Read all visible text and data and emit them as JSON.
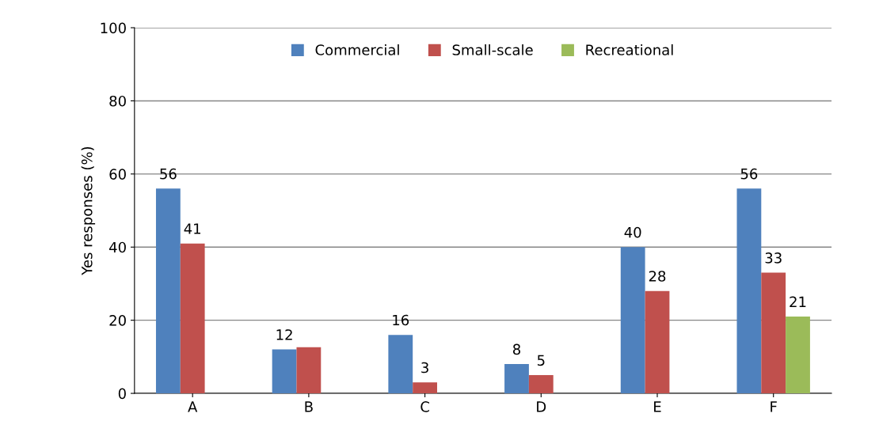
{
  "chart_data": {
    "type": "bar",
    "ylabel": "Yes responses (%)",
    "categories": [
      "A",
      "B",
      "C",
      "D",
      "E",
      "F"
    ],
    "series": [
      {
        "name": "Commercial",
        "color": "#4f81bd",
        "values": [
          56,
          12,
          16,
          8,
          40,
          56
        ],
        "value_labels": [
          "56",
          "12",
          "16",
          "8",
          "40",
          "56"
        ]
      },
      {
        "name": "Small-scale",
        "color": "#c0504d",
        "values": [
          41,
          12.6,
          3,
          5,
          28,
          33
        ],
        "value_labels": [
          "41",
          null,
          "3",
          "5",
          "28",
          "33"
        ]
      },
      {
        "name": "Recreational",
        "color": "#9bbb59",
        "values": [
          null,
          null,
          null,
          null,
          null,
          21
        ],
        "value_labels": [
          null,
          null,
          null,
          null,
          null,
          "21"
        ]
      }
    ],
    "ylim": [
      0,
      100
    ],
    "yticks": [
      0,
      20,
      40,
      60,
      80,
      100
    ],
    "grid": "y",
    "legend": "top"
  }
}
